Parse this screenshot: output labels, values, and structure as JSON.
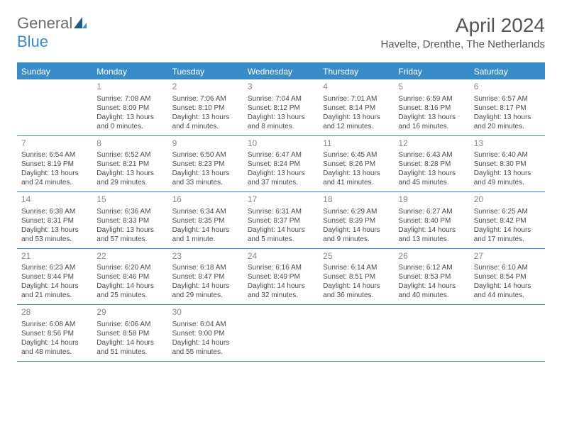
{
  "logo": {
    "general": "General",
    "blue": "Blue"
  },
  "title": "April 2024",
  "location": "Havelte, Drenthe, The Netherlands",
  "day_headers": [
    "Sunday",
    "Monday",
    "Tuesday",
    "Wednesday",
    "Thursday",
    "Friday",
    "Saturday"
  ],
  "colors": {
    "accent": "#3a8cc9",
    "header_text": "#ffffff",
    "body_text": "#4a4a4a",
    "daynum": "#888888",
    "title_text": "#555555",
    "logo_gray": "#6b6b6b"
  },
  "weeks": [
    [
      {
        "day": "",
        "sunrise": "",
        "sunset": "",
        "daylight1": "",
        "daylight2": ""
      },
      {
        "day": "1",
        "sunrise": "Sunrise: 7:08 AM",
        "sunset": "Sunset: 8:09 PM",
        "daylight1": "Daylight: 13 hours",
        "daylight2": "and 0 minutes."
      },
      {
        "day": "2",
        "sunrise": "Sunrise: 7:06 AM",
        "sunset": "Sunset: 8:10 PM",
        "daylight1": "Daylight: 13 hours",
        "daylight2": "and 4 minutes."
      },
      {
        "day": "3",
        "sunrise": "Sunrise: 7:04 AM",
        "sunset": "Sunset: 8:12 PM",
        "daylight1": "Daylight: 13 hours",
        "daylight2": "and 8 minutes."
      },
      {
        "day": "4",
        "sunrise": "Sunrise: 7:01 AM",
        "sunset": "Sunset: 8:14 PM",
        "daylight1": "Daylight: 13 hours",
        "daylight2": "and 12 minutes."
      },
      {
        "day": "5",
        "sunrise": "Sunrise: 6:59 AM",
        "sunset": "Sunset: 8:16 PM",
        "daylight1": "Daylight: 13 hours",
        "daylight2": "and 16 minutes."
      },
      {
        "day": "6",
        "sunrise": "Sunrise: 6:57 AM",
        "sunset": "Sunset: 8:17 PM",
        "daylight1": "Daylight: 13 hours",
        "daylight2": "and 20 minutes."
      }
    ],
    [
      {
        "day": "7",
        "sunrise": "Sunrise: 6:54 AM",
        "sunset": "Sunset: 8:19 PM",
        "daylight1": "Daylight: 13 hours",
        "daylight2": "and 24 minutes."
      },
      {
        "day": "8",
        "sunrise": "Sunrise: 6:52 AM",
        "sunset": "Sunset: 8:21 PM",
        "daylight1": "Daylight: 13 hours",
        "daylight2": "and 29 minutes."
      },
      {
        "day": "9",
        "sunrise": "Sunrise: 6:50 AM",
        "sunset": "Sunset: 8:23 PM",
        "daylight1": "Daylight: 13 hours",
        "daylight2": "and 33 minutes."
      },
      {
        "day": "10",
        "sunrise": "Sunrise: 6:47 AM",
        "sunset": "Sunset: 8:24 PM",
        "daylight1": "Daylight: 13 hours",
        "daylight2": "and 37 minutes."
      },
      {
        "day": "11",
        "sunrise": "Sunrise: 6:45 AM",
        "sunset": "Sunset: 8:26 PM",
        "daylight1": "Daylight: 13 hours",
        "daylight2": "and 41 minutes."
      },
      {
        "day": "12",
        "sunrise": "Sunrise: 6:43 AM",
        "sunset": "Sunset: 8:28 PM",
        "daylight1": "Daylight: 13 hours",
        "daylight2": "and 45 minutes."
      },
      {
        "day": "13",
        "sunrise": "Sunrise: 6:40 AM",
        "sunset": "Sunset: 8:30 PM",
        "daylight1": "Daylight: 13 hours",
        "daylight2": "and 49 minutes."
      }
    ],
    [
      {
        "day": "14",
        "sunrise": "Sunrise: 6:38 AM",
        "sunset": "Sunset: 8:31 PM",
        "daylight1": "Daylight: 13 hours",
        "daylight2": "and 53 minutes."
      },
      {
        "day": "15",
        "sunrise": "Sunrise: 6:36 AM",
        "sunset": "Sunset: 8:33 PM",
        "daylight1": "Daylight: 13 hours",
        "daylight2": "and 57 minutes."
      },
      {
        "day": "16",
        "sunrise": "Sunrise: 6:34 AM",
        "sunset": "Sunset: 8:35 PM",
        "daylight1": "Daylight: 14 hours",
        "daylight2": "and 1 minute."
      },
      {
        "day": "17",
        "sunrise": "Sunrise: 6:31 AM",
        "sunset": "Sunset: 8:37 PM",
        "daylight1": "Daylight: 14 hours",
        "daylight2": "and 5 minutes."
      },
      {
        "day": "18",
        "sunrise": "Sunrise: 6:29 AM",
        "sunset": "Sunset: 8:39 PM",
        "daylight1": "Daylight: 14 hours",
        "daylight2": "and 9 minutes."
      },
      {
        "day": "19",
        "sunrise": "Sunrise: 6:27 AM",
        "sunset": "Sunset: 8:40 PM",
        "daylight1": "Daylight: 14 hours",
        "daylight2": "and 13 minutes."
      },
      {
        "day": "20",
        "sunrise": "Sunrise: 6:25 AM",
        "sunset": "Sunset: 8:42 PM",
        "daylight1": "Daylight: 14 hours",
        "daylight2": "and 17 minutes."
      }
    ],
    [
      {
        "day": "21",
        "sunrise": "Sunrise: 6:23 AM",
        "sunset": "Sunset: 8:44 PM",
        "daylight1": "Daylight: 14 hours",
        "daylight2": "and 21 minutes."
      },
      {
        "day": "22",
        "sunrise": "Sunrise: 6:20 AM",
        "sunset": "Sunset: 8:46 PM",
        "daylight1": "Daylight: 14 hours",
        "daylight2": "and 25 minutes."
      },
      {
        "day": "23",
        "sunrise": "Sunrise: 6:18 AM",
        "sunset": "Sunset: 8:47 PM",
        "daylight1": "Daylight: 14 hours",
        "daylight2": "and 29 minutes."
      },
      {
        "day": "24",
        "sunrise": "Sunrise: 6:16 AM",
        "sunset": "Sunset: 8:49 PM",
        "daylight1": "Daylight: 14 hours",
        "daylight2": "and 32 minutes."
      },
      {
        "day": "25",
        "sunrise": "Sunrise: 6:14 AM",
        "sunset": "Sunset: 8:51 PM",
        "daylight1": "Daylight: 14 hours",
        "daylight2": "and 36 minutes."
      },
      {
        "day": "26",
        "sunrise": "Sunrise: 6:12 AM",
        "sunset": "Sunset: 8:53 PM",
        "daylight1": "Daylight: 14 hours",
        "daylight2": "and 40 minutes."
      },
      {
        "day": "27",
        "sunrise": "Sunrise: 6:10 AM",
        "sunset": "Sunset: 8:54 PM",
        "daylight1": "Daylight: 14 hours",
        "daylight2": "and 44 minutes."
      }
    ],
    [
      {
        "day": "28",
        "sunrise": "Sunrise: 6:08 AM",
        "sunset": "Sunset: 8:56 PM",
        "daylight1": "Daylight: 14 hours",
        "daylight2": "and 48 minutes."
      },
      {
        "day": "29",
        "sunrise": "Sunrise: 6:06 AM",
        "sunset": "Sunset: 8:58 PM",
        "daylight1": "Daylight: 14 hours",
        "daylight2": "and 51 minutes."
      },
      {
        "day": "30",
        "sunrise": "Sunrise: 6:04 AM",
        "sunset": "Sunset: 9:00 PM",
        "daylight1": "Daylight: 14 hours",
        "daylight2": "and 55 minutes."
      },
      {
        "day": "",
        "sunrise": "",
        "sunset": "",
        "daylight1": "",
        "daylight2": ""
      },
      {
        "day": "",
        "sunrise": "",
        "sunset": "",
        "daylight1": "",
        "daylight2": ""
      },
      {
        "day": "",
        "sunrise": "",
        "sunset": "",
        "daylight1": "",
        "daylight2": ""
      },
      {
        "day": "",
        "sunrise": "",
        "sunset": "",
        "daylight1": "",
        "daylight2": ""
      }
    ]
  ]
}
